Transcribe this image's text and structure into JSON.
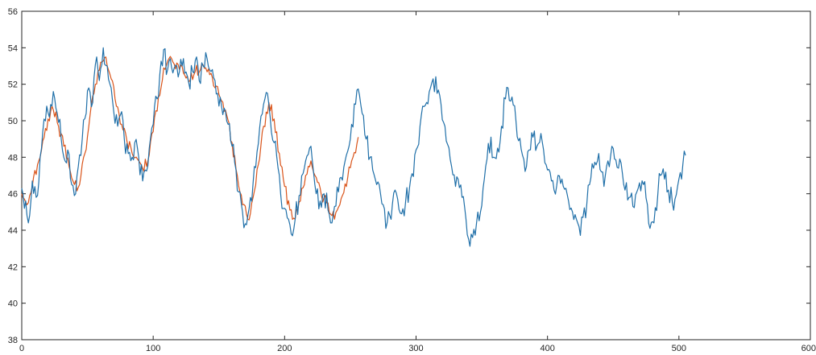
{
  "chart_data": {
    "type": "line",
    "title": "",
    "xlabel": "",
    "ylabel": "",
    "xlim": [
      0,
      600
    ],
    "ylim": [
      38,
      56
    ],
    "x_ticks": [
      "0",
      "100",
      "200",
      "300",
      "400",
      "500",
      "600"
    ],
    "y_ticks": [
      "38",
      "40",
      "42",
      "44",
      "46",
      "48",
      "50",
      "52",
      "54",
      "56"
    ],
    "grid": false,
    "legend": "none",
    "colors": {
      "series_1": "#1f6fa8",
      "series_2": "#d95319",
      "axis": "#262626"
    },
    "series": [
      {
        "points": [
          [
            0,
            46.3
          ],
          [
            3,
            45.6
          ],
          [
            5,
            44.4
          ],
          [
            8,
            46.7
          ],
          [
            11,
            45.8
          ],
          [
            14,
            48.0
          ],
          [
            16,
            49.4
          ],
          [
            19,
            50.8
          ],
          [
            21,
            50.2
          ],
          [
            24,
            51.6
          ],
          [
            27,
            50.4
          ],
          [
            30,
            49.0
          ],
          [
            33,
            47.8
          ],
          [
            35,
            48.4
          ],
          [
            38,
            46.5
          ],
          [
            41,
            46.0
          ],
          [
            43,
            47.5
          ],
          [
            46,
            49.0
          ],
          [
            49,
            50.4
          ],
          [
            51,
            51.8
          ],
          [
            54,
            51.0
          ],
          [
            57,
            53.5
          ],
          [
            59,
            52.2
          ],
          [
            62,
            54.0
          ],
          [
            65,
            53.0
          ],
          [
            68,
            51.8
          ],
          [
            70,
            50.5
          ],
          [
            73,
            49.7
          ],
          [
            76,
            50.5
          ],
          [
            78,
            49.0
          ],
          [
            81,
            48.2
          ],
          [
            84,
            48.0
          ],
          [
            86,
            48.8
          ],
          [
            89,
            48.0
          ],
          [
            92,
            46.7
          ],
          [
            94,
            47.3
          ],
          [
            97,
            48.5
          ],
          [
            100,
            49.8
          ],
          [
            103,
            51.2
          ],
          [
            105,
            52.5
          ],
          [
            108,
            53.9
          ],
          [
            111,
            52.8
          ],
          [
            113,
            53.4
          ],
          [
            116,
            52.9
          ],
          [
            119,
            52.4
          ],
          [
            122,
            53.0
          ],
          [
            124,
            52.6
          ],
          [
            127,
            52.1
          ],
          [
            130,
            52.7
          ],
          [
            133,
            53.5
          ],
          [
            135,
            52.2
          ],
          [
            138,
            53.0
          ],
          [
            141,
            53.4
          ],
          [
            144,
            52.7
          ],
          [
            147,
            52.2
          ],
          [
            149,
            51.5
          ],
          [
            152,
            50.8
          ],
          [
            155,
            50.5
          ],
          [
            157,
            49.8
          ],
          [
            160,
            48.6
          ],
          [
            163,
            47.3
          ],
          [
            165,
            46.1
          ],
          [
            168,
            45.0
          ],
          [
            171,
            44.3
          ],
          [
            173,
            45.2
          ],
          [
            176,
            46.6
          ],
          [
            179,
            48.3
          ],
          [
            181,
            49.6
          ],
          [
            184,
            50.9
          ],
          [
            187,
            51.5
          ],
          [
            189,
            50.2
          ],
          [
            192,
            48.8
          ],
          [
            195,
            47.4
          ],
          [
            197,
            46.0
          ],
          [
            200,
            45.2
          ],
          [
            203,
            44.6
          ],
          [
            205,
            43.8
          ],
          [
            208,
            44.6
          ],
          [
            211,
            45.9
          ],
          [
            214,
            47.1
          ],
          [
            216,
            47.8
          ],
          [
            219,
            48.5
          ],
          [
            222,
            47.2
          ],
          [
            224,
            46.0
          ],
          [
            227,
            45.6
          ],
          [
            230,
            46.0
          ],
          [
            233,
            45.1
          ],
          [
            235,
            44.4
          ],
          [
            238,
            45.3
          ],
          [
            241,
            46.1
          ],
          [
            243,
            46.9
          ],
          [
            246,
            47.8
          ],
          [
            249,
            48.6
          ],
          [
            251,
            49.8
          ],
          [
            254,
            50.9
          ],
          [
            257,
            51.4
          ],
          [
            259,
            50.4
          ],
          [
            262,
            49.0
          ],
          [
            265,
            48.0
          ],
          [
            267,
            47.3
          ],
          [
            270,
            46.5
          ],
          [
            273,
            46.0
          ],
          [
            275,
            45.4
          ],
          [
            278,
            44.4
          ],
          [
            281,
            44.6
          ],
          [
            284,
            46.2
          ],
          [
            286,
            45.7
          ],
          [
            289,
            44.9
          ],
          [
            292,
            45.5
          ],
          [
            295,
            46.3
          ],
          [
            297,
            47.1
          ],
          [
            300,
            48.4
          ],
          [
            303,
            49.7
          ],
          [
            305,
            50.8
          ],
          [
            308,
            51.0
          ],
          [
            311,
            51.8
          ],
          [
            313,
            52.3
          ],
          [
            316,
            51.5
          ],
          [
            319,
            50.9
          ],
          [
            321,
            49.9
          ],
          [
            324,
            48.7
          ],
          [
            327,
            47.5
          ],
          [
            330,
            46.4
          ],
          [
            332,
            46.8
          ],
          [
            335,
            45.8
          ],
          [
            338,
            44.6
          ],
          [
            340,
            43.5
          ],
          [
            343,
            43.6
          ],
          [
            346,
            44.4
          ],
          [
            349,
            45.0
          ],
          [
            351,
            46.3
          ],
          [
            354,
            47.9
          ],
          [
            357,
            49.1
          ],
          [
            359,
            48.0
          ],
          [
            362,
            48.5
          ],
          [
            365,
            49.7
          ],
          [
            368,
            51.2
          ],
          [
            370,
            51.8
          ],
          [
            373,
            51.3
          ],
          [
            376,
            50.0
          ],
          [
            378,
            48.9
          ],
          [
            381,
            48.1
          ],
          [
            384,
            47.5
          ],
          [
            386,
            48.4
          ],
          [
            389,
            49.1
          ],
          [
            392,
            48.6
          ],
          [
            395,
            49.3
          ],
          [
            397,
            48.4
          ],
          [
            400,
            47.3
          ],
          [
            403,
            46.7
          ],
          [
            405,
            46.2
          ],
          [
            408,
            47.0
          ],
          [
            411,
            46.8
          ],
          [
            414,
            46.3
          ],
          [
            416,
            45.6
          ],
          [
            419,
            45.0
          ],
          [
            422,
            44.6
          ],
          [
            424,
            44.2
          ],
          [
            427,
            44.7
          ],
          [
            430,
            45.5
          ],
          [
            432,
            46.5
          ],
          [
            435,
            47.4
          ],
          [
            438,
            47.8
          ],
          [
            441,
            47.2
          ],
          [
            443,
            46.4
          ],
          [
            446,
            47.8
          ],
          [
            449,
            48.6
          ],
          [
            451,
            47.9
          ],
          [
            454,
            47.4
          ],
          [
            457,
            47.1
          ],
          [
            459,
            46.2
          ],
          [
            462,
            45.8
          ],
          [
            465,
            45.3
          ],
          [
            468,
            46.1
          ],
          [
            470,
            46.6
          ],
          [
            473,
            46.5
          ],
          [
            476,
            45.4
          ],
          [
            478,
            44.1
          ],
          [
            481,
            44.4
          ],
          [
            484,
            46.0
          ],
          [
            486,
            47.0
          ],
          [
            489,
            46.8
          ],
          [
            492,
            46.2
          ],
          [
            495,
            45.5
          ],
          [
            497,
            45.7
          ],
          [
            500,
            46.8
          ],
          [
            503,
            47.6
          ],
          [
            505,
            48.1
          ]
        ],
        "wiggle": 0.65
      },
      {
        "points": [
          [
            0,
            46.0
          ],
          [
            4,
            45.4
          ],
          [
            8,
            46.4
          ],
          [
            12,
            47.6
          ],
          [
            16,
            48.9
          ],
          [
            20,
            50.1
          ],
          [
            24,
            50.6
          ],
          [
            28,
            49.7
          ],
          [
            32,
            48.6
          ],
          [
            36,
            47.5
          ],
          [
            40,
            46.5
          ],
          [
            44,
            46.5
          ],
          [
            48,
            48.2
          ],
          [
            52,
            50.3
          ],
          [
            56,
            52.0
          ],
          [
            60,
            53.2
          ],
          [
            64,
            53.5
          ],
          [
            68,
            52.3
          ],
          [
            72,
            50.8
          ],
          [
            76,
            49.8
          ],
          [
            80,
            48.9
          ],
          [
            84,
            48.2
          ],
          [
            88,
            47.9
          ],
          [
            92,
            47.4
          ],
          [
            96,
            47.8
          ],
          [
            100,
            49.4
          ],
          [
            104,
            51.3
          ],
          [
            108,
            52.9
          ],
          [
            112,
            53.4
          ],
          [
            116,
            53.1
          ],
          [
            120,
            52.8
          ],
          [
            124,
            52.5
          ],
          [
            128,
            52.2
          ],
          [
            132,
            52.7
          ],
          [
            136,
            52.8
          ],
          [
            140,
            52.9
          ],
          [
            144,
            52.6
          ],
          [
            148,
            51.9
          ],
          [
            152,
            51.1
          ],
          [
            156,
            50.3
          ],
          [
            160,
            48.8
          ],
          [
            164,
            47.0
          ],
          [
            168,
            45.4
          ],
          [
            172,
            44.6
          ],
          [
            176,
            45.8
          ],
          [
            180,
            47.6
          ],
          [
            184,
            49.7
          ],
          [
            188,
            51.0
          ],
          [
            192,
            50.1
          ],
          [
            196,
            48.2
          ],
          [
            200,
            46.4
          ],
          [
            204,
            45.1
          ],
          [
            208,
            44.6
          ],
          [
            212,
            45.6
          ],
          [
            216,
            47.0
          ],
          [
            220,
            47.8
          ],
          [
            224,
            46.9
          ],
          [
            228,
            45.9
          ],
          [
            232,
            45.5
          ],
          [
            236,
            44.8
          ],
          [
            240,
            45.1
          ],
          [
            244,
            45.9
          ],
          [
            248,
            46.9
          ],
          [
            252,
            48.0
          ],
          [
            256,
            49.1
          ]
        ],
        "wiggle": 0.35
      }
    ]
  }
}
